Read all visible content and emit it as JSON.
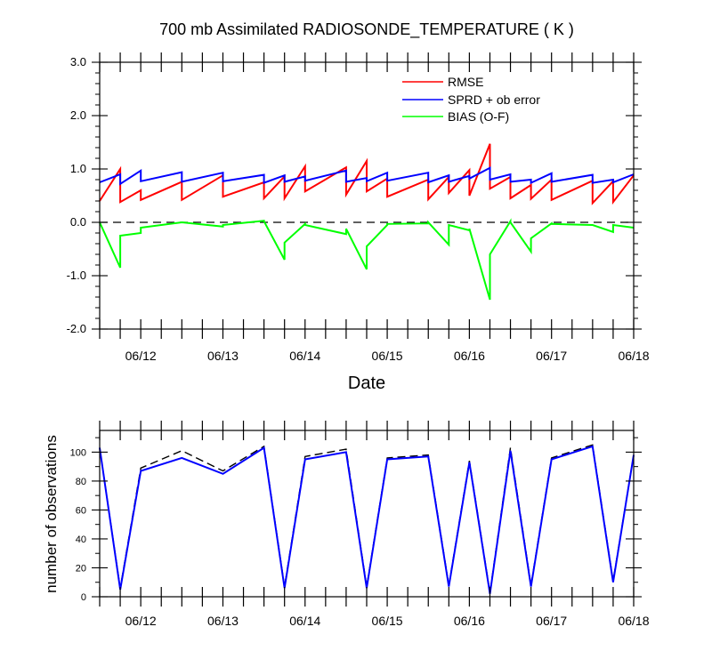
{
  "chart_data": [
    {
      "type": "line",
      "title": "700 mb Assimilated RADIOSONDE_TEMPERATURE ( K )",
      "xlabel": "Date",
      "ylabel": "",
      "ylim": [
        -2.0,
        3.0
      ],
      "yticks": [
        "3.0",
        "2.0",
        "1.0",
        "0.0",
        "-1.0",
        "-2.0"
      ],
      "ytick_values": [
        3,
        2,
        1,
        0,
        -1,
        -2
      ],
      "xlim": [
        11.5,
        18.0
      ],
      "xticks": [
        "06/12",
        "06/13",
        "06/14",
        "06/15",
        "06/16",
        "06/17",
        "06/18"
      ],
      "xtick_values": [
        12,
        13,
        14,
        15,
        16,
        17,
        18
      ],
      "zero_line": "dashed",
      "legend": [
        "RMSE",
        "SPRD + ob error",
        "BIAS (O-F)"
      ],
      "legend_position": "top-right",
      "series": [
        {
          "name": "RMSE",
          "color": "#ff0000",
          "x": [
            11.5,
            11.75,
            11.75,
            12.0,
            12.0,
            12.5,
            12.5,
            13.0,
            13.0,
            13.5,
            13.5,
            13.75,
            13.75,
            14.0,
            14.0,
            14.5,
            14.5,
            14.75,
            14.75,
            15.0,
            15.0,
            15.5,
            15.5,
            15.75,
            15.75,
            16.0,
            16.0,
            16.25,
            16.25,
            16.5,
            16.5,
            16.75,
            16.75,
            17.0,
            17.0,
            17.5,
            17.5,
            17.75,
            17.75,
            18.0
          ],
          "values": [
            0.4,
            1.0,
            0.38,
            0.6,
            0.42,
            0.76,
            0.42,
            0.88,
            0.48,
            0.75,
            0.45,
            0.86,
            0.45,
            1.05,
            0.58,
            1.03,
            0.52,
            1.15,
            0.58,
            0.82,
            0.48,
            0.8,
            0.43,
            0.85,
            0.55,
            0.98,
            0.5,
            1.47,
            0.63,
            0.85,
            0.45,
            0.7,
            0.44,
            0.8,
            0.42,
            0.78,
            0.36,
            0.77,
            0.38,
            0.88
          ]
        },
        {
          "name": "SPRD + ob error",
          "color": "#0000ff",
          "x": [
            11.5,
            11.75,
            11.75,
            12.0,
            12.0,
            12.5,
            12.5,
            13.0,
            13.0,
            13.5,
            13.5,
            13.75,
            13.75,
            14.0,
            14.0,
            14.5,
            14.5,
            14.75,
            14.75,
            15.0,
            15.0,
            15.5,
            15.5,
            15.75,
            15.75,
            16.0,
            16.0,
            16.25,
            16.25,
            16.5,
            16.5,
            16.75,
            16.75,
            17.0,
            17.0,
            17.5,
            17.5,
            17.75,
            17.75,
            18.0
          ],
          "values": [
            0.75,
            0.9,
            0.72,
            0.97,
            0.77,
            0.94,
            0.76,
            0.93,
            0.77,
            0.89,
            0.74,
            0.88,
            0.76,
            0.86,
            0.78,
            0.97,
            0.76,
            0.83,
            0.77,
            0.93,
            0.78,
            0.93,
            0.75,
            0.88,
            0.76,
            0.87,
            0.82,
            1.02,
            0.8,
            0.9,
            0.76,
            0.8,
            0.74,
            0.92,
            0.76,
            0.89,
            0.74,
            0.8,
            0.75,
            0.9
          ]
        },
        {
          "name": "BIAS (O-F)",
          "color": "#00ff00",
          "x": [
            11.5,
            11.75,
            11.75,
            12.0,
            12.0,
            12.5,
            12.5,
            13.0,
            13.0,
            13.5,
            13.5,
            13.75,
            13.75,
            14.0,
            14.0,
            14.5,
            14.5,
            14.75,
            14.75,
            15.0,
            15.0,
            15.5,
            15.5,
            15.75,
            15.75,
            16.0,
            16.0,
            16.25,
            16.25,
            16.5,
            16.5,
            16.75,
            16.75,
            17.0,
            17.0,
            17.5,
            17.5,
            17.75,
            17.75,
            18.0
          ],
          "values": [
            0.0,
            -0.85,
            -0.25,
            -0.2,
            -0.1,
            0.0,
            0.0,
            -0.08,
            -0.05,
            0.03,
            0.02,
            -0.7,
            -0.38,
            -0.03,
            -0.05,
            -0.22,
            -0.12,
            -0.88,
            -0.45,
            -0.05,
            -0.03,
            -0.02,
            0.0,
            -0.42,
            -0.05,
            -0.15,
            -0.12,
            -1.45,
            -0.6,
            0.02,
            0.0,
            -0.55,
            -0.3,
            -0.02,
            -0.03,
            -0.05,
            -0.05,
            -0.18,
            -0.05,
            -0.1
          ]
        }
      ]
    },
    {
      "type": "line",
      "title": "",
      "xlabel": "",
      "ylabel": "number of observations",
      "ylim": [
        0,
        115
      ],
      "yticks": [
        "100",
        "80",
        "60",
        "40",
        "20",
        "0"
      ],
      "ytick_values": [
        100,
        80,
        60,
        40,
        20,
        0
      ],
      "xlim": [
        11.5,
        18.0
      ],
      "xticks": [
        "06/12",
        "06/13",
        "06/14",
        "06/15",
        "06/16",
        "06/17",
        "06/18"
      ],
      "xtick_values": [
        12,
        13,
        14,
        15,
        16,
        17,
        18
      ],
      "series": [
        {
          "name": "observations (dashed)",
          "color": "#000000",
          "dashed": true,
          "x": [
            11.5,
            11.75,
            12.0,
            12.5,
            13.0,
            13.5,
            13.75,
            14.0,
            14.5,
            14.75,
            15.0,
            15.5,
            15.75,
            16.0,
            16.25,
            16.5,
            16.75,
            17.0,
            17.5,
            17.75,
            18.0
          ],
          "values": [
            103,
            6,
            89,
            101,
            87,
            104,
            7,
            97,
            102,
            7,
            96,
            98,
            8,
            94,
            3,
            103,
            8,
            96,
            105,
            11,
            98
          ]
        },
        {
          "name": "observations (solid)",
          "color": "#0000ff",
          "dashed": false,
          "x": [
            11.5,
            11.75,
            12.0,
            12.5,
            13.0,
            13.5,
            13.75,
            14.0,
            14.5,
            14.75,
            15.0,
            15.5,
            15.75,
            16.0,
            16.25,
            16.5,
            16.75,
            17.0,
            17.5,
            17.75,
            18.0
          ],
          "values": [
            103,
            5,
            87,
            96,
            85,
            103,
            6,
            95,
            100,
            6,
            95,
            97,
            7,
            93,
            2,
            101,
            7,
            95,
            104,
            10,
            98
          ]
        }
      ]
    }
  ]
}
